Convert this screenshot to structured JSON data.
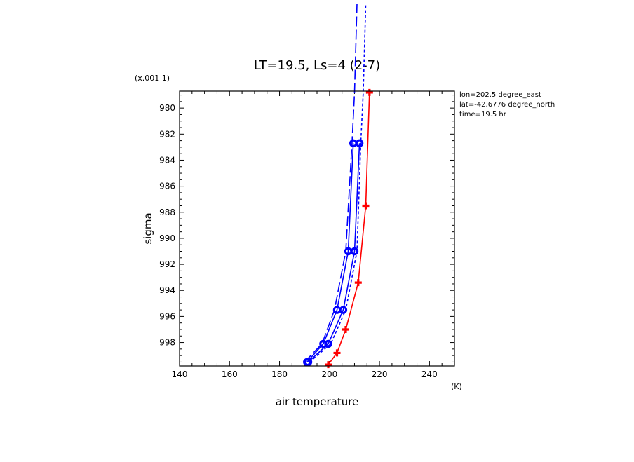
{
  "chart_data": {
    "type": "line",
    "title": "LT=19.5, Ls=4 (2-7)",
    "xlabel": "air temperature",
    "xunit": "(K)",
    "ylabel": "sigma",
    "yscale_note": "(x.001 1)",
    "xlim": [
      140,
      250
    ],
    "ylim": [
      999.8,
      978.7
    ],
    "xticks": [
      140,
      160,
      180,
      200,
      220,
      240
    ],
    "yticks": [
      980,
      982,
      984,
      986,
      988,
      990,
      992,
      994,
      996,
      998
    ],
    "ytick_labels": [
      "980",
      "982",
      "984",
      "986",
      "988",
      "990",
      "992",
      "994",
      "996",
      "998"
    ],
    "info": [
      "lon=202.5 degree_east",
      "lat=-42.6776 degree_north",
      "time=19.5 hr"
    ],
    "series": [
      {
        "color": "#ff0000",
        "dash": "solid",
        "marker": "plus",
        "x": [
          199.5,
          203,
          206.5,
          211.5,
          214.5,
          216
        ],
        "y": [
          999.7,
          998.8,
          997.0,
          993.4,
          987.5,
          978.8
        ]
      },
      {
        "color": "#0000ff",
        "dash": "solid",
        "marker": "circle",
        "x": [
          191,
          197.5,
          203,
          207.5,
          209.5
        ],
        "y": [
          999.5,
          998.1,
          995.5,
          991.0,
          982.7
        ]
      },
      {
        "color": "#0000ff",
        "dash": "solid",
        "marker": "circle",
        "x": [
          191.5,
          199.5,
          205.5,
          210,
          212
        ],
        "y": [
          999.5,
          998.1,
          995.5,
          991.0,
          982.7
        ]
      },
      {
        "color": "#0000ff",
        "dash": "long",
        "marker": "none",
        "x": [
          190,
          197,
          202,
          206.5,
          209,
          210,
          211
        ],
        "y": [
          999.5,
          998.1,
          995.5,
          991.0,
          982.7,
          978.8,
          972.0
        ]
      },
      {
        "color": "#0000ff",
        "dash": "short",
        "marker": "none",
        "x": [
          192,
          200.5,
          206.5,
          211,
          212.5,
          213.5,
          214.5
        ],
        "y": [
          999.5,
          998.1,
          995.5,
          991.0,
          982.7,
          978.8,
          972.0
        ]
      }
    ]
  }
}
